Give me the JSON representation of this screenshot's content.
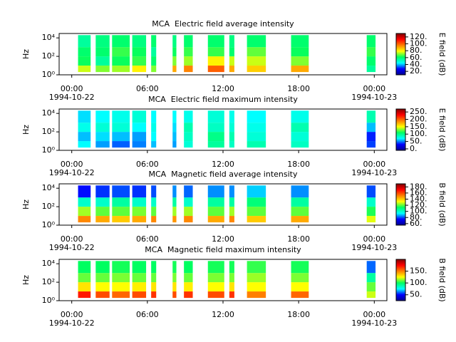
{
  "chart_data": [
    {
      "type": "spectrogram",
      "title": "MCA  Electric field average intensity",
      "ylabel": "Hz",
      "zlabel": "E field (dB)",
      "xlim": [
        -1,
        25
      ],
      "xticks": [
        {
          "value": 0,
          "label": "00:00"
        },
        {
          "value": 6,
          "label": "06:00"
        },
        {
          "value": 12,
          "label": "12:00"
        },
        {
          "value": 18,
          "label": "18:00"
        },
        {
          "value": 24,
          "label": "00:00"
        }
      ],
      "xdate_labels": [
        {
          "value": 0,
          "label": "1994-10-22"
        },
        {
          "value": 24,
          "label": "1994-10-23"
        }
      ],
      "ylog": true,
      "ylim": [
        1,
        30000
      ],
      "yticks": [
        {
          "value": 1,
          "label": "10⁰"
        },
        {
          "value": 100,
          "label": "10²"
        },
        {
          "value": 10000,
          "label": "10⁴"
        }
      ],
      "zlim": [
        10,
        130
      ],
      "zticks": [
        {
          "value": 20,
          "label": "20."
        },
        {
          "value": 40,
          "label": "40."
        },
        {
          "value": 60,
          "label": "60."
        },
        {
          "value": 80,
          "label": "80."
        },
        {
          "value": 100,
          "label": "100."
        },
        {
          "value": 120,
          "label": "120."
        }
      ],
      "colormap": [
        "#00008f",
        "#0000ff",
        "#00ffff",
        "#00ff60",
        "#ffff00",
        "#ff7f00",
        "#ff0000",
        "#800000"
      ],
      "freq_bins": [
        2,
        10,
        100,
        1000,
        20000
      ],
      "segments": [
        [
          0.5,
          1.5
        ],
        [
          1.9,
          3.0
        ],
        [
          3.2,
          4.6
        ],
        [
          4.8,
          5.9
        ],
        [
          6.3,
          6.7
        ],
        [
          8.0,
          8.3
        ],
        [
          8.9,
          9.6
        ],
        [
          10.8,
          12.1
        ],
        [
          12.5,
          12.9
        ],
        [
          13.9,
          15.4
        ],
        [
          17.4,
          18.8
        ],
        [
          23.4,
          24.1
        ]
      ],
      "z": [
        [
          75,
          62,
          60,
          55
        ],
        [
          70,
          55,
          60,
          58
        ],
        [
          72,
          62,
          65,
          60
        ],
        [
          80,
          65,
          62,
          58
        ],
        [
          70,
          60,
          55,
          60
        ],
        [
          90,
          70,
          62,
          58
        ],
        [
          95,
          72,
          65,
          60
        ],
        [
          100,
          80,
          65,
          60
        ],
        [
          90,
          75,
          60,
          58
        ],
        [
          85,
          75,
          68,
          60
        ],
        [
          90,
          70,
          62,
          60
        ],
        [
          55,
          60,
          65,
          60
        ]
      ]
    },
    {
      "type": "spectrogram",
      "title": "MCA  Electric field maximum intensity",
      "ylabel": "Hz",
      "zlabel": "E field (dB)",
      "xlim": [
        -1,
        25
      ],
      "xticks": [
        {
          "value": 0,
          "label": "00:00"
        },
        {
          "value": 6,
          "label": "06:00"
        },
        {
          "value": 12,
          "label": "12:00"
        },
        {
          "value": 18,
          "label": "18:00"
        },
        {
          "value": 24,
          "label": "00:00"
        }
      ],
      "xdate_labels": [
        {
          "value": 0,
          "label": "1994-10-22"
        },
        {
          "value": 24,
          "label": "1994-10-23"
        }
      ],
      "ylog": true,
      "ylim": [
        1,
        30000
      ],
      "yticks": [
        {
          "value": 1,
          "label": "10⁰"
        },
        {
          "value": 100,
          "label": "10²"
        },
        {
          "value": 10000,
          "label": "10⁴"
        }
      ],
      "zlim": [
        -10,
        270
      ],
      "zticks": [
        {
          "value": 0,
          "label": "0."
        },
        {
          "value": 50,
          "label": "50."
        },
        {
          "value": 100,
          "label": "100."
        },
        {
          "value": 150,
          "label": "150."
        },
        {
          "value": 200,
          "label": "200."
        },
        {
          "value": 250,
          "label": "250."
        }
      ],
      "colormap": [
        "#00008f",
        "#0000ff",
        "#00ffff",
        "#00ff60",
        "#ffff00",
        "#ff7f00",
        "#ff0000",
        "#800000"
      ],
      "freq_bins": [
        2,
        10,
        100,
        1000,
        20000
      ],
      "segments": [
        [
          0.5,
          1.5
        ],
        [
          1.9,
          3.0
        ],
        [
          3.2,
          4.6
        ],
        [
          4.8,
          5.9
        ],
        [
          6.3,
          6.7
        ],
        [
          8.0,
          8.3
        ],
        [
          8.9,
          9.6
        ],
        [
          10.8,
          12.1
        ],
        [
          12.5,
          12.9
        ],
        [
          13.9,
          15.4
        ],
        [
          17.4,
          18.8
        ],
        [
          23.4,
          24.1
        ]
      ],
      "z": [
        [
          70,
          60,
          75,
          65
        ],
        [
          55,
          65,
          80,
          70
        ],
        [
          45,
          60,
          80,
          75
        ],
        [
          50,
          55,
          70,
          80
        ],
        [
          60,
          70,
          75,
          70
        ],
        [
          55,
          60,
          65,
          70
        ],
        [
          80,
          85,
          90,
          75
        ],
        [
          95,
          100,
          85,
          80
        ],
        [
          85,
          90,
          80,
          75
        ],
        [
          90,
          80,
          75,
          70
        ],
        [
          85,
          80,
          90,
          75
        ],
        [
          40,
          35,
          60,
          90
        ]
      ]
    },
    {
      "type": "spectrogram",
      "title": "MCA  Magnetic field average intensity",
      "ylabel": "Hz",
      "zlabel": "B field (dB)",
      "xlim": [
        -1,
        25
      ],
      "xticks": [
        {
          "value": 0,
          "label": "00:00"
        },
        {
          "value": 6,
          "label": "06:00"
        },
        {
          "value": 12,
          "label": "12:00"
        },
        {
          "value": 18,
          "label": "18:00"
        },
        {
          "value": 24,
          "label": "00:00"
        }
      ],
      "xdate_labels": [
        {
          "value": 0,
          "label": "1994-10-22"
        },
        {
          "value": 24,
          "label": "1994-10-23"
        }
      ],
      "ylog": true,
      "ylim": [
        1,
        30000
      ],
      "yticks": [
        {
          "value": 1,
          "label": "10⁰"
        },
        {
          "value": 100,
          "label": "10²"
        },
        {
          "value": 10000,
          "label": "10⁴"
        }
      ],
      "zlim": [
        55,
        190
      ],
      "zticks": [
        {
          "value": 60,
          "label": "60."
        },
        {
          "value": 80,
          "label": "80."
        },
        {
          "value": 100,
          "label": "100."
        },
        {
          "value": 120,
          "label": "120."
        },
        {
          "value": 140,
          "label": "140."
        },
        {
          "value": 160,
          "label": "160."
        },
        {
          "value": 180,
          "label": "180."
        }
      ],
      "colormap": [
        "#00008f",
        "#0000ff",
        "#00ffff",
        "#00ff60",
        "#ffff00",
        "#ff7f00",
        "#ff0000",
        "#800000"
      ],
      "freq_bins": [
        2,
        10,
        100,
        1000,
        20000
      ],
      "segments": [
        [
          0.5,
          1.5
        ],
        [
          1.9,
          3.0
        ],
        [
          3.2,
          4.6
        ],
        [
          4.8,
          5.9
        ],
        [
          6.3,
          6.7
        ],
        [
          8.0,
          8.3
        ],
        [
          8.9,
          9.6
        ],
        [
          10.8,
          12.1
        ],
        [
          12.5,
          12.9
        ],
        [
          13.9,
          15.4
        ],
        [
          17.4,
          18.8
        ],
        [
          23.4,
          24.1
        ]
      ],
      "z": [
        [
          150,
          125,
          100,
          75
        ],
        [
          145,
          120,
          100,
          78
        ],
        [
          140,
          120,
          105,
          80
        ],
        [
          145,
          122,
          100,
          78
        ],
        [
          150,
          120,
          100,
          80
        ],
        [
          148,
          125,
          105,
          85
        ],
        [
          150,
          125,
          100,
          82
        ],
        [
          145,
          120,
          105,
          85
        ],
        [
          150,
          125,
          105,
          85
        ],
        [
          140,
          120,
          110,
          90
        ],
        [
          145,
          120,
          105,
          85
        ],
        [
          130,
          115,
          100,
          80
        ]
      ]
    },
    {
      "type": "spectrogram",
      "title": "MCA  Magnetic field maximum intensity",
      "ylabel": "Hz",
      "zlabel": "B field (dB)",
      "xlim": [
        -1,
        25
      ],
      "xticks": [
        {
          "value": 0,
          "label": "00:00"
        },
        {
          "value": 6,
          "label": "06:00"
        },
        {
          "value": 12,
          "label": "12:00"
        },
        {
          "value": 18,
          "label": "18:00"
        },
        {
          "value": 24,
          "label": "00:00"
        }
      ],
      "xdate_labels": [
        {
          "value": 0,
          "label": "1994-10-22"
        },
        {
          "value": 24,
          "label": "1994-10-23"
        }
      ],
      "ylog": true,
      "ylim": [
        1,
        30000
      ],
      "yticks": [
        {
          "value": 1,
          "label": "10⁰"
        },
        {
          "value": 100,
          "label": "10²"
        },
        {
          "value": 10000,
          "label": "10⁴"
        }
      ],
      "zlim": [
        25,
        200
      ],
      "zticks": [
        {
          "value": 50,
          "label": "50."
        },
        {
          "value": 100,
          "label": "100."
        },
        {
          "value": 150,
          "label": "150."
        }
      ],
      "colormap": [
        "#00008f",
        "#0000ff",
        "#00ffff",
        "#00ff60",
        "#ffff00",
        "#ff7f00",
        "#ff0000",
        "#800000"
      ],
      "freq_bins": [
        2,
        10,
        100,
        1000,
        20000
      ],
      "segments": [
        [
          0.5,
          1.5
        ],
        [
          1.9,
          3.0
        ],
        [
          3.2,
          4.6
        ],
        [
          4.8,
          5.9
        ],
        [
          6.3,
          6.7
        ],
        [
          8.0,
          8.3
        ],
        [
          8.9,
          9.6
        ],
        [
          10.8,
          12.1
        ],
        [
          12.5,
          12.9
        ],
        [
          13.9,
          15.4
        ],
        [
          17.4,
          18.8
        ],
        [
          23.4,
          24.1
        ]
      ],
      "z": [
        [
          170,
          130,
          110,
          100
        ],
        [
          160,
          125,
          110,
          100
        ],
        [
          155,
          125,
          112,
          102
        ],
        [
          160,
          128,
          110,
          100
        ],
        [
          165,
          130,
          110,
          100
        ],
        [
          160,
          130,
          112,
          102
        ],
        [
          165,
          128,
          110,
          100
        ],
        [
          160,
          125,
          112,
          102
        ],
        [
          165,
          130,
          112,
          102
        ],
        [
          150,
          125,
          115,
          105
        ],
        [
          155,
          125,
          112,
          102
        ],
        [
          120,
          110,
          90,
          60
        ]
      ]
    }
  ]
}
